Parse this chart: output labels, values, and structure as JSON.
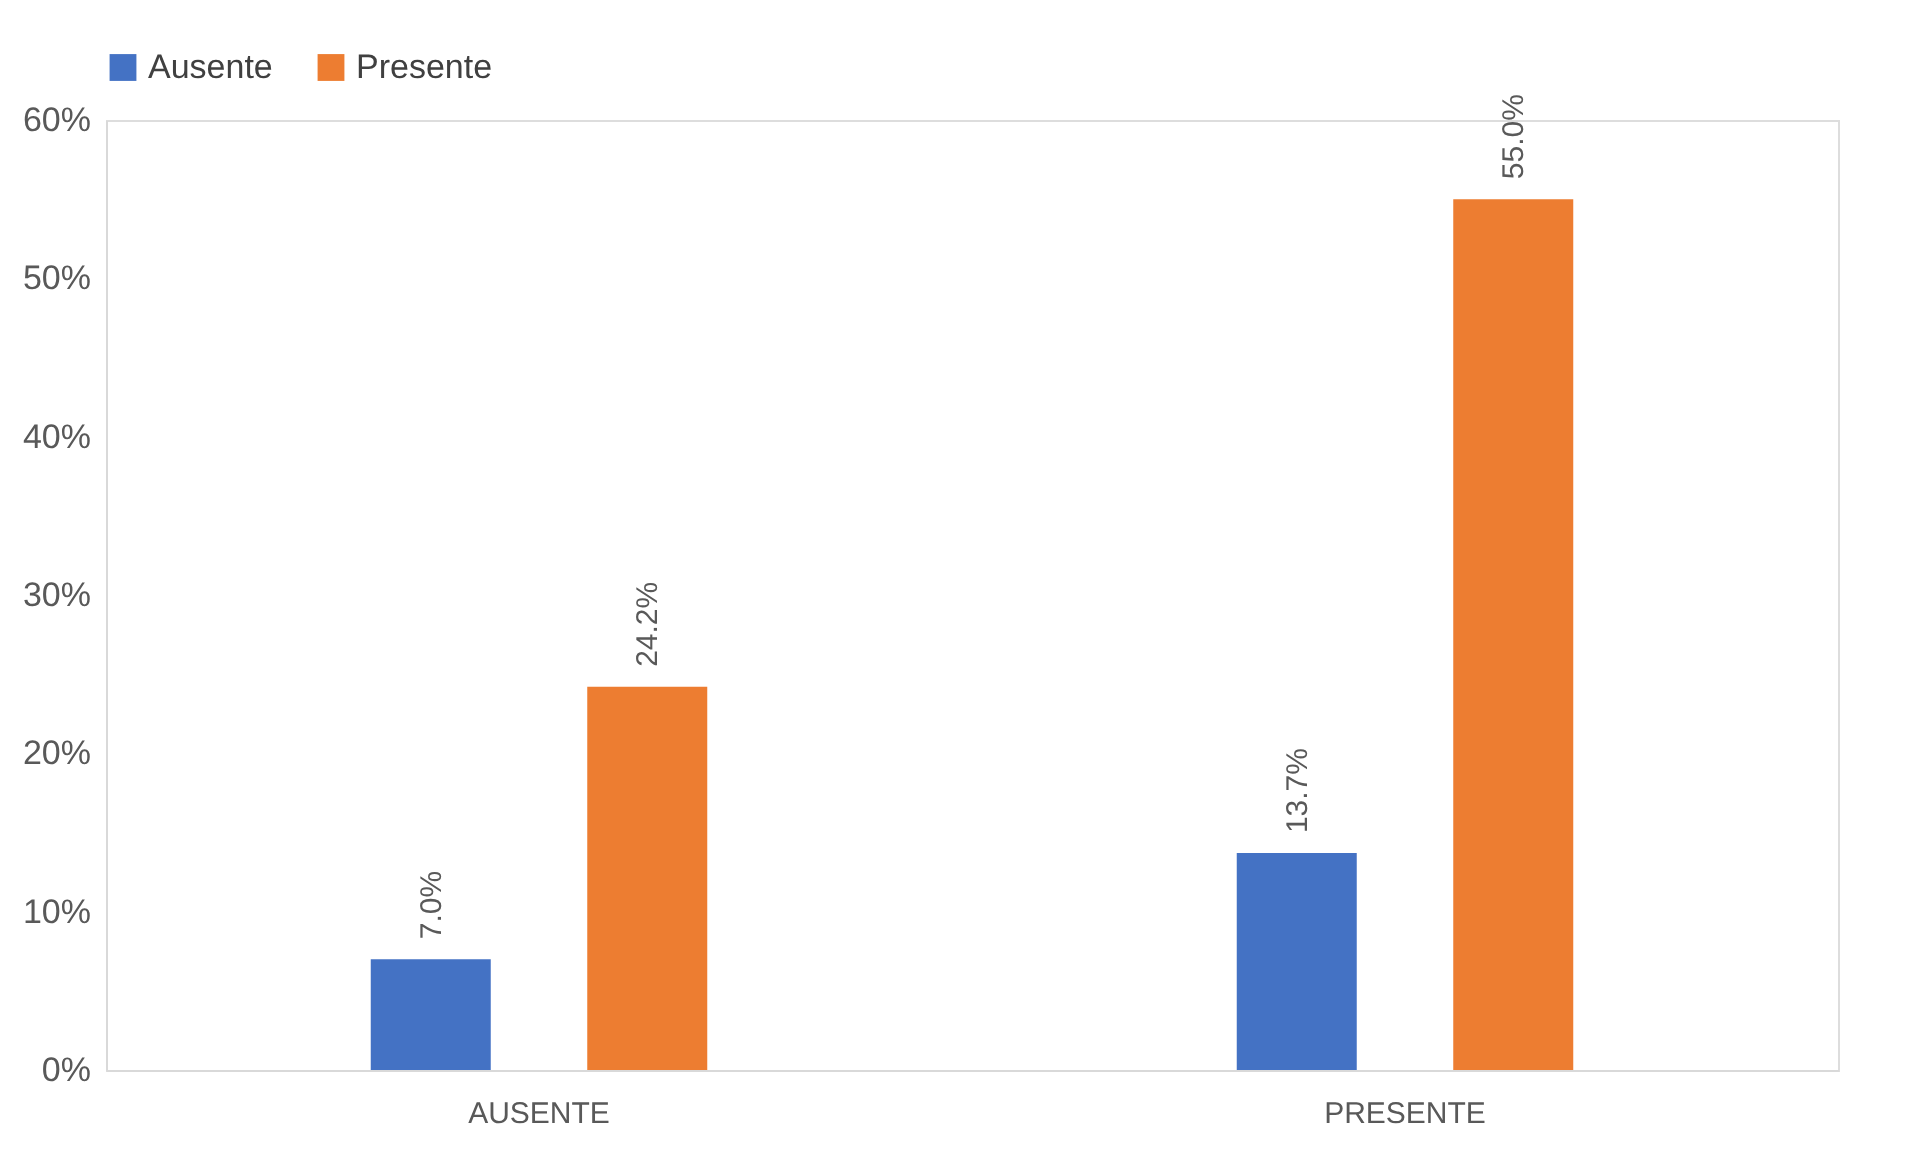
{
  "chart_data": {
    "type": "bar",
    "categories": [
      "AUSENTE",
      "PRESENTE"
    ],
    "series": [
      {
        "name": "Ausente",
        "color": "#4472c4",
        "values": [
          7.0,
          13.7
        ],
        "value_labels": [
          "7.0%",
          "13.7%"
        ]
      },
      {
        "name": "Presente",
        "color": "#ed7d31",
        "values": [
          24.2,
          55.0
        ],
        "value_labels": [
          "24.2%",
          "55.0%"
        ]
      }
    ],
    "ylim": [
      0,
      60
    ],
    "yticks": [
      {
        "value": 0,
        "label": "0%"
      },
      {
        "value": 10,
        "label": "10%"
      },
      {
        "value": 20,
        "label": "20%"
      },
      {
        "value": 30,
        "label": "30%"
      },
      {
        "value": 40,
        "label": "40%"
      },
      {
        "value": 50,
        "label": "50%"
      },
      {
        "value": 60,
        "label": "60%"
      }
    ],
    "grid": false,
    "legend": "top"
  }
}
